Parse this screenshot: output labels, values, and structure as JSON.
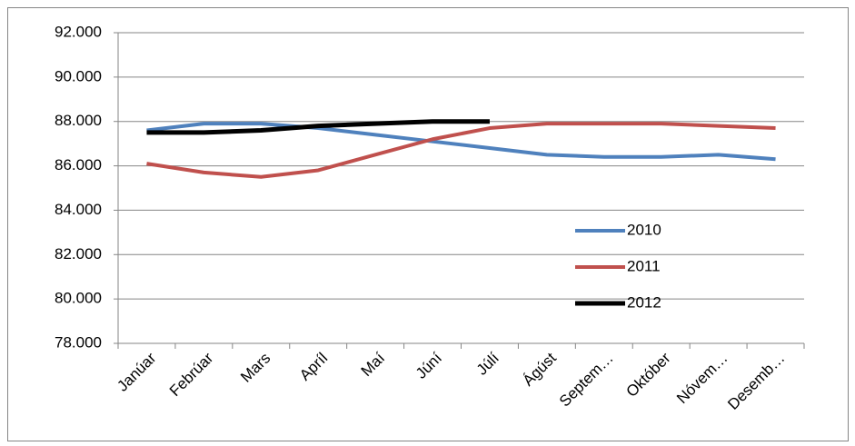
{
  "chart_data": {
    "type": "line",
    "categories": [
      "Janúar",
      "Febrúar",
      "Mars",
      "Apríl",
      "Maí",
      "Júní",
      "Júlí",
      "Ágúst",
      "Septem…",
      "Október",
      "Nóvem…",
      "Desemb…"
    ],
    "series": [
      {
        "name": "2010",
        "color": "#4f81bd",
        "values": [
          87600,
          87900,
          87900,
          87700,
          87400,
          87100,
          86800,
          86500,
          86400,
          86400,
          86500,
          86300
        ]
      },
      {
        "name": "2011",
        "color": "#c0504d",
        "values": [
          86100,
          85700,
          85500,
          85800,
          86500,
          87200,
          87700,
          87900,
          87900,
          87900,
          87800,
          87700
        ]
      },
      {
        "name": "2012",
        "color": "#000000",
        "values": [
          87500,
          87500,
          87600,
          87800,
          87900,
          88000,
          88000,
          null,
          null,
          null,
          null,
          null
        ]
      }
    ],
    "ylim": [
      78000,
      92000
    ],
    "yticks": [
      {
        "value": 78000,
        "label": "78.000"
      },
      {
        "value": 80000,
        "label": "80.000"
      },
      {
        "value": 82000,
        "label": "82.000"
      },
      {
        "value": 84000,
        "label": "84.000"
      },
      {
        "value": 86000,
        "label": "86.000"
      },
      {
        "value": 88000,
        "label": "88.000"
      },
      {
        "value": 90000,
        "label": "90.000"
      },
      {
        "value": 92000,
        "label": "92.000"
      }
    ],
    "grid": true,
    "legend": "inside-right"
  }
}
